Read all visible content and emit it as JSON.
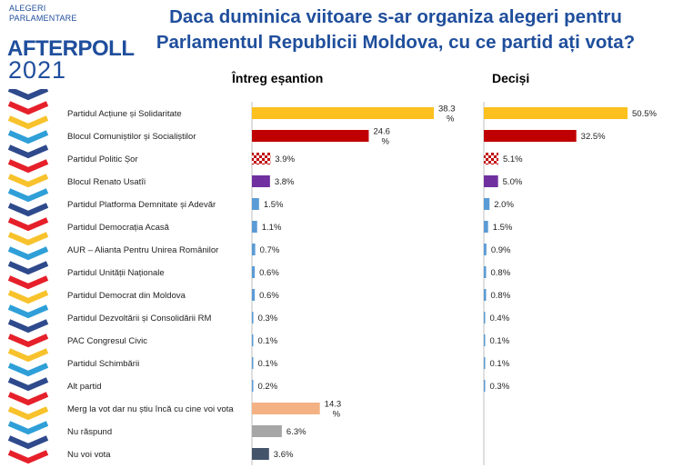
{
  "brand": {
    "line1": "ALEGERI",
    "line2": "PARLAMENTARE",
    "name": "AFTERPOLL",
    "year": "2021",
    "colors": [
      "#2e4a8c",
      "#e6202a",
      "#f7c22b",
      "#2f9fd8"
    ]
  },
  "header": {
    "title_line1": "Daca duminica viitoare s-ar organiza alegeri pentru",
    "title_line2": "Parlamentul Republicii Moldova, cu ce partid ați vota?"
  },
  "panels": {
    "full_sample": "Întreg eșantion",
    "decided": "Deciși"
  },
  "chart_data": {
    "type": "bar",
    "orientation": "horizontal",
    "categories": [
      "Partidul Acțiune și Solidaritate",
      "Blocul Comuniștilor și Socialiștilor",
      "Partidul Politic Șor",
      "Blocul Renato Usatîi",
      "Partidul Platforma Demnitate și Adevăr",
      "Partidul Democrația Acasă",
      "AUR – Alianta Pentru Unirea Românilor",
      "Partidul Unității Naționale",
      "Partidul Democrat din Moldova",
      " Partidul Dezvoltării și Consolidării RM",
      "PAC Congresul Civic",
      "Partidul Schimbării",
      "Alt partid",
      "Merg la vot dar nu știu încă cu cine voi vota",
      "Nu răspund",
      "Nu voi vota"
    ],
    "colors": [
      "#fcc01f",
      "#c00000",
      "#c00000",
      "#7030a0",
      "#5b9bd5",
      "#5b9bd5",
      "#5b9bd5",
      "#5b9bd5",
      "#5b9bd5",
      "#5b9bd5",
      "#5b9bd5",
      "#5b9bd5",
      "#5b9bd5",
      "#f4b183",
      "#a6a6a6",
      "#44546a"
    ],
    "checkered": [
      false,
      false,
      true,
      false,
      false,
      false,
      false,
      false,
      false,
      false,
      false,
      false,
      false,
      false,
      false,
      false
    ],
    "series": [
      {
        "name": "Întreg eșantion",
        "values": [
          38.3,
          24.6,
          3.9,
          3.8,
          1.5,
          1.1,
          0.7,
          0.6,
          0.6,
          0.3,
          0.1,
          0.1,
          0.2,
          14.3,
          6.3,
          3.6
        ],
        "labels": [
          "38.3 %",
          "24.6 %",
          "3.9%",
          "3.8%",
          "1.5%",
          "1.1%",
          "0.7%",
          "0.6%",
          "0.6%",
          "0.3%",
          "0.1%",
          "0.1%",
          "0.2%",
          "14.3 %",
          "6.3%",
          "3.6%"
        ]
      },
      {
        "name": "Deciși",
        "values": [
          50.5,
          32.5,
          5.1,
          5.0,
          2.0,
          1.5,
          0.9,
          0.8,
          0.8,
          0.4,
          0.1,
          0.1,
          0.3,
          null,
          null,
          null
        ],
        "labels": [
          "50.5%",
          "32.5%",
          "5.1%",
          "5.0%",
          "2.0%",
          "1.5%",
          "0.9%",
          "0.8%",
          "0.8%",
          "0.4%",
          "0.1%",
          "0.1%",
          "0.3%",
          "",
          "",
          ""
        ]
      }
    ],
    "unit": "%",
    "grid": false
  }
}
